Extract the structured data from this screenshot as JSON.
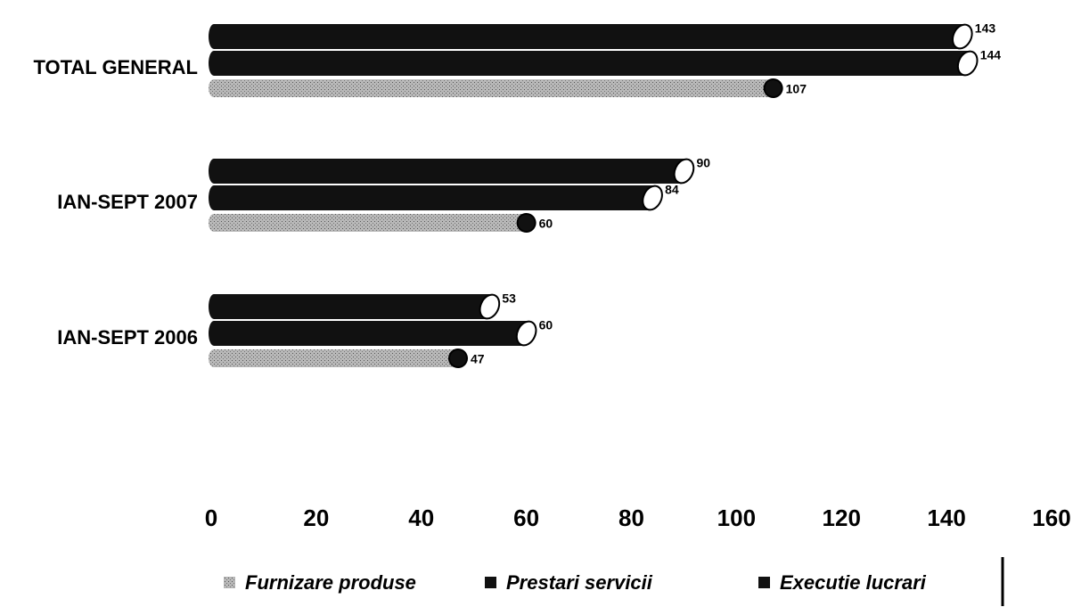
{
  "chart_data": {
    "type": "bar",
    "orientation": "horizontal",
    "categories": [
      "TOTAL GENERAL",
      "IAN-SEPT 2007",
      "IAN-SEPT 2006"
    ],
    "series": [
      {
        "name": "Furnizare produse",
        "color": "#a6a6a6",
        "values": [
          107,
          60,
          47
        ]
      },
      {
        "name": "Prestari servicii",
        "color": "#111111",
        "values": [
          144,
          84,
          60
        ]
      },
      {
        "name": "Executie lucrari",
        "color": "#111111",
        "values": [
          143,
          90,
          53
        ]
      }
    ],
    "xlim": [
      0,
      160
    ],
    "xticks": [
      0,
      20,
      40,
      60,
      80,
      100,
      120,
      140,
      160
    ],
    "legend": "bottom"
  }
}
